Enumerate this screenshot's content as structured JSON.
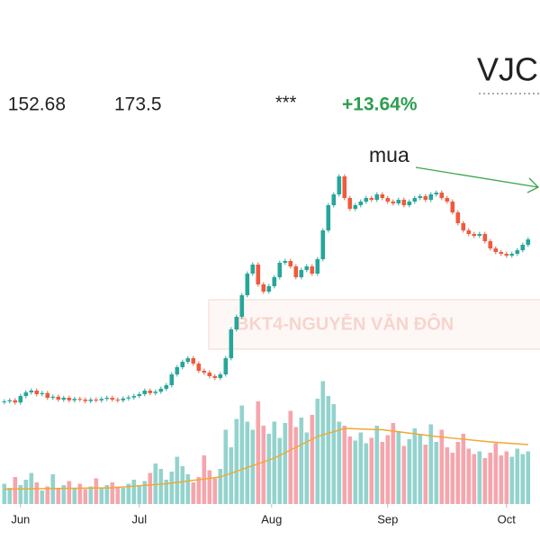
{
  "header": {
    "values": [
      "152.68",
      "173.5",
      "***",
      "+13.64%"
    ]
  },
  "chart_data": {
    "type": "candlestick",
    "title": "VJC",
    "annotation": "mua",
    "watermark": "BKT4-NGUYỄN VĂN ĐÔN",
    "xlim": [
      -0.8,
      99.2
    ],
    "ylim": [
      0,
      110
    ],
    "volume_ylim": [
      0,
      10
    ],
    "xticks": [
      {
        "value": 3,
        "label": "Jun"
      },
      {
        "value": 25,
        "label": "Jul"
      },
      {
        "value": 49.5,
        "label": "Aug"
      },
      {
        "value": 71,
        "label": "Sep"
      },
      {
        "value": 93,
        "label": "Oct"
      }
    ],
    "colors": {
      "up": "#26a69a",
      "down": "#ef5a3c",
      "volume_up": "#93d3cd",
      "volume_down": "#f5a5ac",
      "ma": "#f0a830",
      "change": "#2e9e4f"
    },
    "ohlc": [
      [
        28.3,
        29.1,
        27.7,
        28.5
      ],
      [
        28.5,
        29.4,
        27.9,
        28.8
      ],
      [
        28.8,
        29.4,
        27.6,
        28.2
      ],
      [
        28.2,
        30.6,
        27.6,
        30
      ],
      [
        30,
        31.6,
        29.4,
        31
      ],
      [
        31,
        32.1,
        30.4,
        31.5
      ],
      [
        31.5,
        32.1,
        29.9,
        30.5
      ],
      [
        30.5,
        31.4,
        29.9,
        30.8
      ],
      [
        30.8,
        31.4,
        28.9,
        29.5
      ],
      [
        29.5,
        30.4,
        28.9,
        29.8
      ],
      [
        29.8,
        30.4,
        28.4,
        29
      ],
      [
        29,
        30.1,
        28.4,
        29.5
      ],
      [
        29.5,
        30.1,
        28.2,
        28.8
      ],
      [
        28.8,
        29.8,
        28.2,
        29.2
      ],
      [
        29.2,
        29.8,
        28.4,
        29
      ],
      [
        29,
        29.6,
        28,
        28.6
      ],
      [
        28.6,
        29.6,
        28,
        29
      ],
      [
        29,
        29.6,
        28.2,
        28.8
      ],
      [
        28.8,
        29.8,
        28.2,
        29.2
      ],
      [
        29.2,
        30.1,
        28.6,
        29.5
      ],
      [
        29.5,
        30.1,
        28.4,
        29
      ],
      [
        29,
        29.6,
        28.2,
        28.8
      ],
      [
        28.8,
        29.9,
        28.2,
        29.3
      ],
      [
        29.3,
        30.2,
        28.7,
        29.6
      ],
      [
        29.6,
        30.6,
        29,
        30
      ],
      [
        30,
        31.1,
        29.4,
        30.5
      ],
      [
        30.5,
        32.1,
        29.9,
        31.5
      ],
      [
        31.5,
        32.1,
        30.2,
        30.8
      ],
      [
        30.8,
        31.8,
        30.2,
        31.2
      ],
      [
        31.2,
        32.6,
        30.6,
        32
      ],
      [
        32,
        33.6,
        31.4,
        33
      ],
      [
        33,
        36.6,
        32.4,
        36
      ],
      [
        36,
        38.6,
        35.4,
        38
      ],
      [
        38,
        40.1,
        37.4,
        39.5
      ],
      [
        39.5,
        41.1,
        38.9,
        40.5
      ],
      [
        40.5,
        41.1,
        38.4,
        39
      ],
      [
        39,
        39.6,
        36.4,
        37
      ],
      [
        37,
        37.6,
        35.9,
        36.5
      ],
      [
        36.5,
        37.1,
        34.9,
        35.5
      ],
      [
        35.5,
        36.1,
        34.4,
        35
      ],
      [
        35,
        36.6,
        34.4,
        36
      ],
      [
        36,
        41.1,
        35.4,
        40.5
      ],
      [
        40.5,
        49.1,
        39.9,
        48.5
      ],
      [
        48.5,
        52.6,
        47.9,
        52
      ],
      [
        52,
        58.6,
        51.4,
        58
      ],
      [
        58,
        64.6,
        57.4,
        64
      ],
      [
        64,
        67.1,
        63.4,
        66.5
      ],
      [
        66.5,
        67.1,
        60.4,
        61
      ],
      [
        61,
        61.6,
        58.4,
        59
      ],
      [
        59,
        61.1,
        58.4,
        60.5
      ],
      [
        60.5,
        63.6,
        59.9,
        63
      ],
      [
        63,
        67.6,
        62.4,
        67
      ],
      [
        67,
        68.1,
        66.4,
        67.5
      ],
      [
        67.5,
        68.1,
        65.4,
        66
      ],
      [
        66,
        66.6,
        62.4,
        63
      ],
      [
        63,
        65.6,
        62.4,
        65
      ],
      [
        65,
        66.6,
        64.4,
        66
      ],
      [
        66,
        66.6,
        63.4,
        64
      ],
      [
        64,
        68.6,
        63.4,
        68
      ],
      [
        68,
        76.6,
        67.4,
        76
      ],
      [
        76,
        83.6,
        75.4,
        83
      ],
      [
        83,
        86.6,
        82.4,
        86
      ],
      [
        86,
        91.6,
        85.4,
        91
      ],
      [
        91,
        91.6,
        84.4,
        85
      ],
      [
        85,
        85.6,
        81.4,
        82
      ],
      [
        82,
        83.6,
        81.4,
        83
      ],
      [
        83,
        84.6,
        82.4,
        84
      ],
      [
        84,
        85.6,
        83.4,
        85
      ],
      [
        85,
        85.6,
        83.9,
        84.5
      ],
      [
        84.5,
        86.6,
        83.9,
        86
      ],
      [
        86,
        86.6,
        84.4,
        85
      ],
      [
        85,
        85.6,
        83.4,
        84
      ],
      [
        84,
        84.6,
        82.9,
        83.5
      ],
      [
        83.5,
        85.1,
        82.9,
        84.5
      ],
      [
        84.5,
        85.1,
        82.4,
        83
      ],
      [
        83,
        84.6,
        82.4,
        84
      ],
      [
        84,
        85.6,
        83.4,
        85
      ],
      [
        85,
        86.1,
        84.4,
        85.5
      ],
      [
        85.5,
        86.1,
        83.9,
        84.5
      ],
      [
        84.5,
        86.6,
        83.9,
        86
      ],
      [
        86,
        87.1,
        85.4,
        86.5
      ],
      [
        86.5,
        87.1,
        84.4,
        85
      ],
      [
        85,
        85.6,
        83.4,
        84
      ],
      [
        84,
        84.6,
        80.4,
        81
      ],
      [
        81,
        81.6,
        77.4,
        78
      ],
      [
        78,
        78.6,
        75.4,
        76
      ],
      [
        76,
        76.6,
        74.4,
        75
      ],
      [
        75,
        75.6,
        73.9,
        74.5
      ],
      [
        74.5,
        75.6,
        73.9,
        75
      ],
      [
        75,
        75.6,
        72.4,
        73
      ],
      [
        73,
        73.6,
        70.4,
        71
      ],
      [
        71,
        71.6,
        69.4,
        70
      ],
      [
        70,
        70.6,
        68.9,
        69.5
      ],
      [
        69.5,
        70.1,
        68.4,
        69
      ],
      [
        69,
        70.1,
        68.4,
        69.5
      ],
      [
        69.5,
        71.1,
        68.9,
        70.5
      ],
      [
        70.5,
        72.6,
        69.9,
        72
      ],
      [
        72,
        74.1,
        71.4,
        73.5
      ]
    ],
    "volume": [
      1.5,
      1.2,
      2,
      1.4,
      1.8,
      2.3,
      1.6,
      1,
      1.3,
      2.2,
      1.1,
      1.4,
      1.7,
      1.2,
      1.5,
      1.1,
      1.3,
      1.9,
      1.2,
      1.4,
      1.6,
      1.3,
      1.2,
      1.5,
      1.8,
      1.4,
      1.7,
      2.3,
      3,
      2.6,
      1.8,
      2.4,
      3.5,
      2.8,
      2.2,
      1.6,
      2,
      3.6,
      2.5,
      1.9,
      2.6,
      5.5,
      4.2,
      6.3,
      7.3,
      6.1,
      5.5,
      7.6,
      5.8,
      5.2,
      6.1,
      4.9,
      6,
      6.9,
      5.7,
      6.4,
      5.3,
      6.6,
      7.8,
      9.1,
      8,
      7.4,
      6.1,
      5.8,
      5,
      4.7,
      5.3,
      4.5,
      4.9,
      5.8,
      4.6,
      5.1,
      6,
      5.4,
      4.3,
      4.8,
      5.6,
      5.2,
      4.4,
      5.9,
      4.6,
      5.5,
      4.2,
      3.8,
      4.6,
      5.2,
      4.1,
      3.7,
      3.9,
      3.4,
      3.8,
      4.5,
      3.6,
      3.9,
      3.5,
      4.1,
      3.7,
      3.9
    ],
    "volume_ma": {
      "x": [
        0,
        20,
        30,
        40,
        50,
        58,
        63,
        70,
        80,
        90,
        97
      ],
      "values": [
        1.1,
        1.2,
        1.5,
        2,
        3.4,
        5,
        5.6,
        5.5,
        5,
        4.6,
        4.4
      ]
    }
  }
}
